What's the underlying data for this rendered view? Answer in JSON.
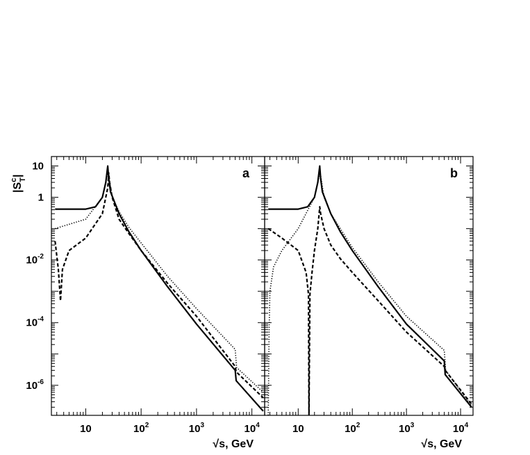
{
  "chart_data": [
    {
      "type": "line",
      "panel_label": "a",
      "xlabel_symbol": "√s",
      "xlabel_text": ", GeV",
      "ylabel_main": "|S",
      "ylabel_sup": "c",
      "ylabel_sub": "T",
      "ylabel_end": "|",
      "xscale": "log",
      "yscale": "log",
      "xlim": [
        2.4,
        17000
      ],
      "ylim": [
        1.1e-07,
        20
      ],
      "x_ticks": [
        {
          "base": "10",
          "exp": ""
        },
        {
          "base": "10",
          "exp": "2"
        },
        {
          "base": "10",
          "exp": "3"
        },
        {
          "base": "10",
          "exp": "4"
        }
      ],
      "y_ticks": [
        {
          "base": "10",
          "exp": ""
        },
        {
          "base": "1",
          "exp": ""
        },
        {
          "base": "10",
          "exp": "-2"
        },
        {
          "base": "10",
          "exp": "-4"
        },
        {
          "base": "10",
          "exp": "-6"
        }
      ],
      "series": [
        {
          "style": "solid",
          "points": [
            [
              2.8,
              0.42
            ],
            [
              10,
              0.42
            ],
            [
              15,
              0.5
            ],
            [
              20,
              1.0
            ],
            [
              23,
              3.0
            ],
            [
              25,
              10
            ],
            [
              26,
              4.0
            ],
            [
              28,
              1.5
            ],
            [
              40,
              0.3
            ],
            [
              60,
              0.08
            ],
            [
              100,
              0.02
            ],
            [
              300,
              0.0014
            ],
            [
              1000,
              9e-05
            ],
            [
              5000,
              3e-06
            ],
            [
              5200,
              1.4e-06
            ],
            [
              16000,
              1.5e-07
            ]
          ]
        },
        {
          "style": "dashed",
          "points": [
            [
              2.8,
              0.04
            ],
            [
              3.2,
              0.005
            ],
            [
              3.5,
              0.0005
            ],
            [
              3.8,
              0.005
            ],
            [
              5,
              0.02
            ],
            [
              10,
              0.05
            ],
            [
              20,
              0.3
            ],
            [
              25,
              2.0
            ],
            [
              26,
              6.0
            ],
            [
              27,
              3.0
            ],
            [
              30,
              1.0
            ],
            [
              40,
              0.2
            ],
            [
              60,
              0.07
            ],
            [
              100,
              0.02
            ],
            [
              300,
              0.0018
            ],
            [
              1000,
              0.00016
            ],
            [
              5000,
              4e-06
            ],
            [
              5200,
              2.7e-06
            ],
            [
              16000,
              4e-07
            ]
          ]
        },
        {
          "style": "dotted",
          "points": [
            [
              2.8,
              0.1
            ],
            [
              10,
              0.2
            ],
            [
              20,
              1.0
            ],
            [
              25,
              6.0
            ],
            [
              26,
              5.0
            ],
            [
              30,
              1.0
            ],
            [
              40,
              0.35
            ],
            [
              60,
              0.11
            ],
            [
              100,
              0.035
            ],
            [
              300,
              0.003
            ],
            [
              1000,
              0.00028
            ],
            [
              5000,
              1.4e-05
            ],
            [
              5300,
              3.7e-06
            ],
            [
              16000,
              6e-07
            ]
          ]
        }
      ]
    },
    {
      "type": "line",
      "panel_label": "b",
      "xlabel_symbol": "√s",
      "xlabel_text": ", GeV",
      "xscale": "log",
      "yscale": "log",
      "xlim": [
        2.4,
        17000
      ],
      "ylim": [
        1.1e-07,
        20
      ],
      "x_ticks": [
        {
          "base": "10",
          "exp": ""
        },
        {
          "base": "10",
          "exp": "2"
        },
        {
          "base": "10",
          "exp": "3"
        },
        {
          "base": "10",
          "exp": "4"
        }
      ],
      "series": [
        {
          "style": "solid",
          "points": [
            [
              2.8,
              0.42
            ],
            [
              10,
              0.42
            ],
            [
              15,
              0.5
            ],
            [
              20,
              1.0
            ],
            [
              23,
              3.0
            ],
            [
              25,
              10
            ],
            [
              26,
              4.0
            ],
            [
              28,
              1.5
            ],
            [
              40,
              0.3
            ],
            [
              60,
              0.08
            ],
            [
              100,
              0.02
            ],
            [
              300,
              0.0014
            ],
            [
              1000,
              9e-05
            ],
            [
              5000,
              6e-06
            ],
            [
              5200,
              2.2e-06
            ],
            [
              16000,
              2e-07
            ]
          ]
        },
        {
          "style": "dashed",
          "points": [
            [
              2.8,
              0.1
            ],
            [
              5,
              0.05
            ],
            [
              10,
              0.02
            ],
            [
              14,
              0.004
            ],
            [
              15.5,
              0.0008
            ],
            [
              15.8,
              1.1e-07
            ],
            [
              16.5,
              0.0008
            ],
            [
              18,
              0.004
            ],
            [
              20,
              0.02
            ],
            [
              23,
              0.1
            ],
            [
              25,
              0.5
            ],
            [
              26,
              0.3
            ],
            [
              30,
              0.1
            ],
            [
              40,
              0.03
            ],
            [
              60,
              0.011
            ],
            [
              100,
              0.004
            ],
            [
              300,
              0.0005
            ],
            [
              1000,
              5e-05
            ],
            [
              5000,
              4e-06
            ],
            [
              5200,
              3e-06
            ],
            [
              16000,
              2.5e-07
            ]
          ]
        },
        {
          "style": "dotted",
          "points": [
            [
              2.8,
              1.1e-07
            ],
            [
              2.9,
              5e-05
            ],
            [
              3,
              0.001
            ],
            [
              3.5,
              0.006
            ],
            [
              5,
              0.02
            ],
            [
              10,
              0.1
            ],
            [
              20,
              1.0
            ],
            [
              25,
              6.0
            ],
            [
              26,
              5.0
            ],
            [
              30,
              1.0
            ],
            [
              40,
              0.3
            ],
            [
              60,
              0.1
            ],
            [
              100,
              0.025
            ],
            [
              300,
              0.002
            ],
            [
              1000,
              0.00016
            ],
            [
              5000,
              1.3e-05
            ],
            [
              5300,
              3e-06
            ],
            [
              16000,
              2.2e-07
            ]
          ]
        }
      ]
    }
  ]
}
